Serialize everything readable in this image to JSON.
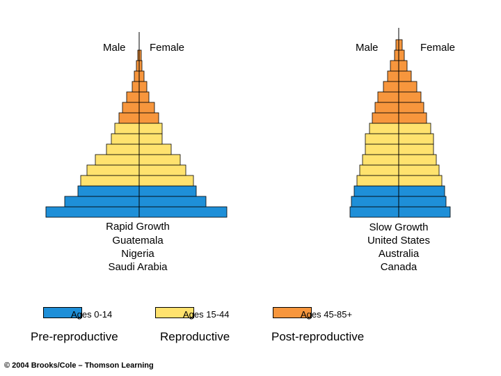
{
  "colors": {
    "pre": "#1e8fd8",
    "repro": "#ffe26e",
    "post": "#f7963d",
    "outline": "#000000"
  },
  "pyramids": [
    {
      "male_label": "Male",
      "female_label": "Female",
      "title": "Rapid Growth",
      "countries": [
        "Guatemala",
        "Nigeria",
        "Saudi Arabia"
      ],
      "rows": [
        {
          "group": "pre",
          "male": 134,
          "female": 126
        },
        {
          "group": "pre",
          "male": 107,
          "female": 96
        },
        {
          "group": "pre",
          "male": 88,
          "female": 82
        },
        {
          "group": "repro",
          "male": 84,
          "female": 78
        },
        {
          "group": "repro",
          "male": 75,
          "female": 67
        },
        {
          "group": "repro",
          "male": 63,
          "female": 59
        },
        {
          "group": "repro",
          "male": 47,
          "female": 46
        },
        {
          "group": "repro",
          "male": 40,
          "female": 33
        },
        {
          "group": "repro",
          "male": 35,
          "female": 33
        },
        {
          "group": "post",
          "male": 29,
          "female": 28
        },
        {
          "group": "post",
          "male": 24,
          "female": 22
        },
        {
          "group": "post",
          "male": 18,
          "female": 14
        },
        {
          "group": "post",
          "male": 10,
          "female": 11
        },
        {
          "group": "post",
          "male": 7,
          "female": 7
        },
        {
          "group": "post",
          "male": 4,
          "female": 4
        },
        {
          "group": "post",
          "male": 2,
          "female": 3
        }
      ]
    },
    {
      "male_label": "Male",
      "female_label": "Female",
      "title": "Slow Growth",
      "countries": [
        "United States",
        "Australia",
        "Canada"
      ],
      "rows": [
        {
          "group": "pre",
          "male": 70,
          "female": 74
        },
        {
          "group": "pre",
          "male": 68,
          "female": 68
        },
        {
          "group": "pre",
          "male": 64,
          "female": 66
        },
        {
          "group": "repro",
          "male": 60,
          "female": 62
        },
        {
          "group": "repro",
          "male": 56,
          "female": 58
        },
        {
          "group": "repro",
          "male": 52,
          "female": 54
        },
        {
          "group": "repro",
          "male": 48,
          "female": 50
        },
        {
          "group": "repro",
          "male": 48,
          "female": 50
        },
        {
          "group": "repro",
          "male": 42,
          "female": 46
        },
        {
          "group": "post",
          "male": 38,
          "female": 40
        },
        {
          "group": "post",
          "male": 34,
          "female": 36
        },
        {
          "group": "post",
          "male": 30,
          "female": 32
        },
        {
          "group": "post",
          "male": 22,
          "female": 26
        },
        {
          "group": "post",
          "male": 16,
          "female": 18
        },
        {
          "group": "post",
          "male": 12,
          "female": 12
        },
        {
          "group": "post",
          "male": 6,
          "female": 8
        },
        {
          "group": "post",
          "male": 4,
          "female": 5
        }
      ]
    }
  ],
  "legend": {
    "pre_label": "Ages 0-14",
    "repro_label": "Ages 15-44",
    "post_label": "Ages 45-85+",
    "pre_category": "Pre-reproductive",
    "repro_category": "Reproductive",
    "post_category": "Post-reproductive"
  },
  "copyright": "© 2004 Brooks/Cole – Thomson Learning"
}
